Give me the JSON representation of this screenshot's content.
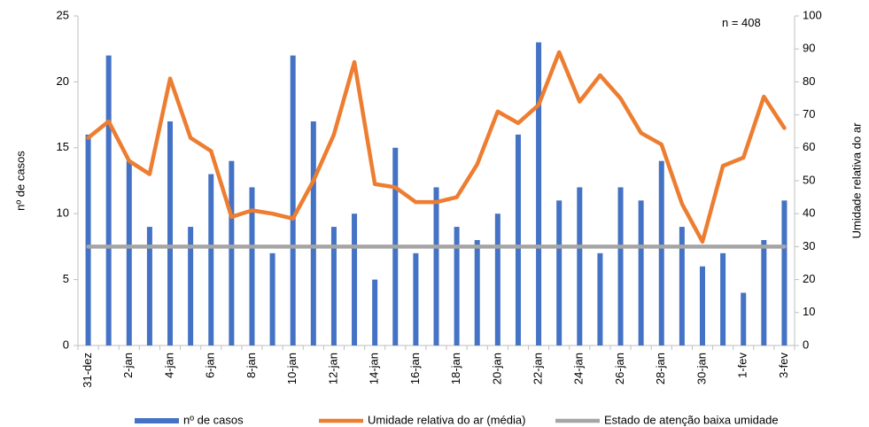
{
  "chart_data": {
    "type": "bar-line",
    "annotation": "n = 408",
    "ylabel": "nº de casos",
    "y2label": "Umidade relativa do ar",
    "categories": [
      "31-dez",
      null,
      "2-jan",
      null,
      "4-jan",
      null,
      "6-jan",
      null,
      "8-jan",
      null,
      "10-jan",
      null,
      "12-jan",
      null,
      "14-jan",
      null,
      "16-jan",
      null,
      "18-jan",
      null,
      "20-jan",
      null,
      "22-jan",
      null,
      "24-jan",
      null,
      "26-jan",
      null,
      "28-jan",
      null,
      "30-jan",
      null,
      "1-fev",
      null,
      "3-fev"
    ],
    "series": [
      {
        "name": "nº de casos",
        "type": "bar",
        "color": "#4472c4",
        "values": [
          16,
          22,
          14,
          9,
          17,
          9,
          13,
          14,
          12,
          7,
          22,
          17,
          9,
          10,
          5,
          15,
          7,
          12,
          9,
          8,
          10,
          16,
          23,
          11,
          12,
          7,
          12,
          11,
          14,
          9,
          6,
          7,
          4,
          8,
          11
        ]
      },
      {
        "name": "Umidade relativa do ar (média)",
        "type": "line",
        "axis": "y2",
        "color": "#ed7d31",
        "values": [
          63,
          68,
          56,
          52,
          81,
          63,
          59,
          39,
          41,
          40,
          38.5,
          50,
          64,
          86,
          49,
          48,
          43.5,
          43.5,
          45,
          55,
          71,
          67.5,
          73,
          89,
          74,
          82,
          75,
          64.5,
          61,
          43,
          31.5,
          54.5,
          57,
          75.5,
          66
        ]
      },
      {
        "name": "Estado de atenção baixa umidade",
        "type": "line",
        "axis": "y2",
        "color": "#a5a5a5",
        "values": [
          30,
          30,
          30,
          30,
          30,
          30,
          30,
          30,
          30,
          30,
          30,
          30,
          30,
          30,
          30,
          30,
          30,
          30,
          30,
          30,
          30,
          30,
          30,
          30,
          30,
          30,
          30,
          30,
          30,
          30,
          30,
          30,
          30,
          30,
          30
        ]
      }
    ],
    "ylim": [
      0,
      25
    ],
    "yticks": [
      0,
      5,
      10,
      15,
      20,
      25
    ],
    "y2lim": [
      0,
      100
    ],
    "y2ticks": [
      0,
      10,
      20,
      30,
      40,
      50,
      60,
      70,
      80,
      90,
      100
    ],
    "grid": false
  }
}
